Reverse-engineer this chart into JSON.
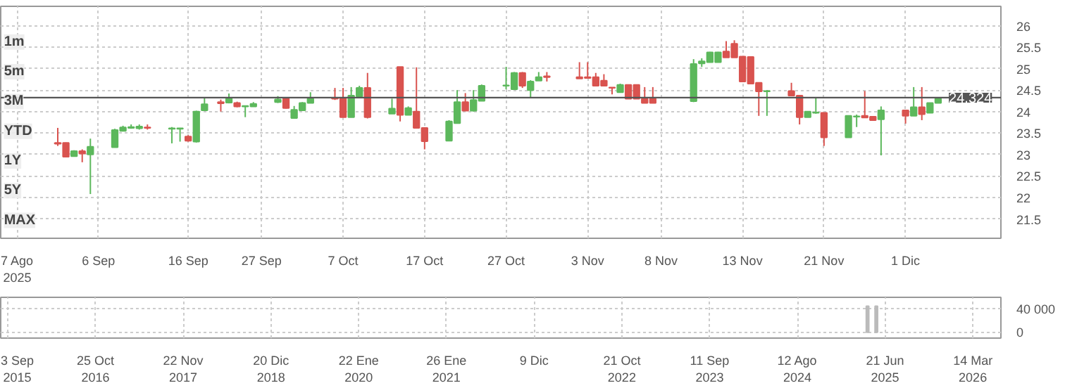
{
  "chart_data": [
    {
      "type": "candlestick",
      "categories": [
        "7 Ago\n2025",
        null,
        null,
        null,
        null,
        null,
        null,
        null,
        null,
        null,
        "6 Sep",
        null,
        null,
        null,
        null,
        null,
        null,
        null,
        null,
        null,
        null,
        "16 Sep",
        null,
        null,
        null,
        null,
        null,
        null,
        null,
        null,
        "27 Sep",
        null,
        null,
        null,
        null,
        null,
        null,
        null,
        null,
        null,
        "7 Oct",
        null,
        null,
        null,
        null,
        null,
        null,
        null,
        null,
        null,
        "17 Oct",
        null,
        null,
        null,
        null,
        null,
        null,
        null,
        null,
        null,
        "27 Oct",
        null,
        null,
        null,
        null,
        null,
        null,
        null,
        null,
        null,
        "3 Nov",
        null,
        null,
        null,
        null,
        null,
        null,
        null,
        null,
        "8 Nov",
        null,
        null,
        null,
        null,
        null,
        null,
        null,
        null,
        null,
        "13 Nov",
        null,
        null,
        null,
        null,
        null,
        null,
        null,
        null,
        null,
        "21 Nov",
        null,
        null,
        null,
        null,
        null,
        null,
        null,
        null,
        null,
        "1 Dic",
        null,
        null,
        null,
        null,
        null,
        null,
        null,
        null
      ],
      "ohlc": [
        null,
        null,
        null,
        null,
        null,
        [
          23.27,
          23.62,
          23.2,
          23.25
        ],
        [
          23.27,
          23.28,
          22.95,
          22.95
        ],
        [
          22.96,
          23.1,
          22.95,
          23.08
        ],
        [
          23.08,
          23.12,
          22.82,
          23.02
        ],
        [
          23.0,
          23.37,
          22.08,
          23.18
        ],
        null,
        null,
        [
          23.17,
          23.6,
          23.17,
          23.57
        ],
        [
          23.55,
          23.67,
          23.55,
          23.63
        ],
        [
          23.62,
          23.7,
          23.6,
          23.64
        ],
        [
          23.61,
          23.7,
          23.58,
          23.65
        ],
        [
          23.63,
          23.7,
          23.58,
          23.62
        ],
        null,
        null,
        [
          23.6,
          23.64,
          23.26,
          23.61
        ],
        [
          23.6,
          23.62,
          23.3,
          23.61
        ],
        [
          23.42,
          23.45,
          23.3,
          23.32
        ],
        [
          23.3,
          24.02,
          23.28,
          24.0
        ],
        [
          24.03,
          24.32,
          24.03,
          24.17
        ],
        null,
        [
          24.22,
          24.28,
          24.0,
          24.19
        ],
        [
          24.21,
          24.42,
          24.19,
          24.3
        ],
        [
          24.2,
          24.23,
          24.1,
          24.12
        ],
        [
          24.12,
          24.14,
          23.87,
          24.13
        ],
        [
          24.12,
          24.22,
          24.12,
          24.18
        ],
        null,
        null,
        [
          24.22,
          24.36,
          24.2,
          24.28
        ],
        [
          24.3,
          24.32,
          24.07,
          24.08
        ],
        [
          23.85,
          24.13,
          23.84,
          24.04
        ],
        [
          24.03,
          24.22,
          24.02,
          24.2
        ],
        [
          24.2,
          24.45,
          24.2,
          24.3
        ],
        null,
        null,
        [
          24.32,
          24.55,
          24.27,
          24.3
        ],
        [
          24.32,
          24.55,
          23.87,
          23.87
        ],
        [
          23.87,
          24.57,
          23.87,
          24.37
        ],
        [
          24.35,
          24.6,
          24.33,
          24.55
        ],
        [
          24.55,
          24.9,
          23.84,
          23.87
        ],
        null,
        null,
        [
          23.95,
          24.3,
          23.95,
          24.07
        ],
        [
          25.04,
          25.04,
          23.77,
          23.92
        ],
        [
          23.92,
          24.12,
          23.92,
          24.08
        ],
        [
          24.0,
          25.03,
          23.62,
          23.62
        ],
        [
          23.62,
          23.62,
          23.12,
          23.31
        ],
        null,
        null,
        [
          23.32,
          23.8,
          23.32,
          23.77
        ],
        [
          23.73,
          24.5,
          23.73,
          24.22
        ],
        [
          24.22,
          24.43,
          24.02,
          24.02
        ],
        [
          24.02,
          24.5,
          24.0,
          24.27
        ],
        [
          24.25,
          24.63,
          24.25,
          24.6
        ],
        null,
        null,
        [
          24.6,
          25.04,
          24.52,
          24.61
        ],
        [
          24.52,
          24.92,
          24.52,
          24.9
        ],
        [
          24.9,
          24.92,
          24.55,
          24.6
        ],
        [
          24.5,
          24.73,
          24.33,
          24.7
        ],
        [
          24.72,
          24.92,
          24.72,
          24.8
        ],
        [
          24.82,
          24.92,
          24.7,
          24.8
        ],
        null,
        null,
        null,
        [
          24.8,
          25.15,
          24.77,
          24.77
        ],
        [
          24.8,
          25.15,
          24.77,
          24.78
        ],
        [
          24.8,
          24.9,
          24.6,
          24.6
        ],
        [
          24.72,
          24.87,
          24.6,
          24.6
        ],
        [
          24.56,
          24.56,
          24.4,
          24.55
        ],
        [
          24.45,
          24.65,
          24.45,
          24.62
        ],
        [
          24.62,
          24.62,
          24.3,
          24.3
        ],
        [
          24.62,
          24.62,
          24.3,
          24.3
        ],
        [
          24.3,
          24.57,
          24.2,
          24.2
        ],
        [
          24.3,
          24.57,
          24.2,
          24.2
        ],
        null,
        null,
        null,
        null,
        [
          24.24,
          25.22,
          24.22,
          25.11
        ],
        [
          25.12,
          25.24,
          25.04,
          25.17
        ],
        [
          25.15,
          25.39,
          25.15,
          25.38
        ],
        [
          25.15,
          25.39,
          25.15,
          25.38
        ],
        [
          25.4,
          25.64,
          25.26,
          25.26
        ],
        [
          25.58,
          25.66,
          25.26,
          25.26
        ],
        [
          25.28,
          25.28,
          24.7,
          24.7
        ],
        [
          25.27,
          25.27,
          24.65,
          24.65
        ],
        [
          24.67,
          24.67,
          23.9,
          24.47
        ],
        [
          24.47,
          24.5,
          23.9,
          24.48
        ],
        null,
        null,
        [
          24.48,
          24.67,
          24.37,
          24.37
        ],
        [
          24.37,
          24.37,
          23.7,
          23.87
        ],
        [
          23.87,
          24.0,
          23.87,
          24.0
        ],
        [
          23.97,
          24.33,
          23.95,
          23.98
        ],
        [
          23.97,
          23.97,
          23.2,
          23.4
        ],
        null,
        null,
        [
          23.4,
          23.9,
          23.4,
          23.9
        ],
        [
          23.88,
          23.93,
          23.64,
          23.89
        ],
        [
          23.9,
          24.48,
          23.85,
          23.86
        ],
        [
          23.88,
          23.88,
          23.8,
          23.8
        ],
        [
          23.82,
          24.12,
          22.98,
          24.03
        ],
        null,
        null,
        [
          24.03,
          24.03,
          23.72,
          23.9
        ],
        [
          23.9,
          24.57,
          23.9,
          24.1
        ],
        [
          24.1,
          24.57,
          23.8,
          23.94
        ],
        [
          23.97,
          24.2,
          23.97,
          24.2
        ],
        [
          24.2,
          24.3,
          24.2,
          24.3
        ],
        null,
        null,
        null,
        null
      ],
      "colors": [
        null,
        null,
        null,
        null,
        null,
        "#d9534f",
        "#d9534f",
        "#5cb85c",
        "#d9534f",
        "#5cb85c",
        null,
        null,
        "#5cb85c",
        "#5cb85c",
        "#5cb85c",
        "#5cb85c",
        "#d9534f",
        null,
        null,
        "#5cb85c",
        "#5cb85c",
        "#d9534f",
        "#5cb85c",
        "#5cb85c",
        null,
        "#d9534f",
        "#5cb85c",
        "#d9534f",
        "#5cb85c",
        "#5cb85c",
        null,
        null,
        "#5cb85c",
        "#d9534f",
        "#5cb85c",
        "#5cb85c",
        "#5cb85c",
        null,
        null,
        "#d9534f",
        "#d9534f",
        "#5cb85c",
        "#5cb85c",
        "#d9534f",
        null,
        null,
        "#5cb85c",
        "#d9534f",
        "#5cb85c",
        "#d9534f",
        "#d9534f",
        null,
        null,
        "#5cb85c",
        "#5cb85c",
        "#d9534f",
        "#5cb85c",
        "#5cb85c",
        null,
        null,
        "#5cb85c",
        "#5cb85c",
        "#d9534f",
        "#5cb85c",
        "#5cb85c",
        "#d9534f",
        null,
        null,
        null,
        "#d9534f",
        "#d9534f",
        "#d9534f",
        "#d9534f",
        "#d9534f",
        "#5cb85c",
        "#d9534f",
        "#d9534f",
        "#d9534f",
        "#d9534f",
        null,
        null,
        null,
        null,
        "#5cb85c",
        "#5cb85c",
        "#5cb85c",
        "#5cb85c",
        "#d9534f",
        "#d9534f",
        "#d9534f",
        "#d9534f",
        "#d9534f",
        "#5cb85c",
        null,
        null,
        "#d9534f",
        "#d9534f",
        "#5cb85c",
        "#5cb85c",
        "#d9534f",
        null,
        null,
        "#5cb85c",
        "#5cb85c",
        "#d9534f",
        "#d9534f",
        "#5cb85c",
        null,
        null,
        "#d9534f",
        "#5cb85c",
        "#d9534f",
        "#5cb85c",
        "#5cb85c",
        null,
        null,
        null,
        null
      ],
      "ylim": [
        21.05,
        26.45
      ],
      "yticks": [
        21.5,
        22,
        22.5,
        23,
        23.5,
        24,
        24.5,
        25,
        25.5,
        26
      ],
      "ref_lines": [
        {
          "axis": "y",
          "value": 24.324,
          "label": "24.324",
          "color": "#555555"
        }
      ],
      "annotations": [
        "1m",
        "5m",
        "3M",
        "YTD",
        "1Y",
        "5Y",
        "MAX"
      ],
      "grid": true
    },
    {
      "type": "bar",
      "categories": [
        "3 Sep\n2015",
        null,
        null,
        null,
        null,
        null,
        null,
        null,
        null,
        null,
        "25 Oct\n2016",
        null,
        null,
        null,
        null,
        null,
        null,
        null,
        null,
        null,
        "22 Nov\n2017",
        null,
        null,
        null,
        null,
        null,
        null,
        null,
        null,
        null,
        "20 Dic\n2018",
        null,
        null,
        null,
        null,
        null,
        null,
        null,
        null,
        null,
        "22 Ene\n2020",
        null,
        null,
        null,
        null,
        null,
        null,
        null,
        null,
        null,
        "26 Ene\n2021",
        null,
        null,
        null,
        null,
        null,
        null,
        null,
        null,
        null,
        "9 Dic",
        null,
        null,
        null,
        null,
        null,
        null,
        null,
        null,
        null,
        "21 Oct\n2022",
        null,
        null,
        null,
        null,
        null,
        null,
        null,
        null,
        null,
        "11 Sep\n2023",
        null,
        null,
        null,
        null,
        null,
        null,
        null,
        null,
        null,
        "12 Ago\n2024",
        null,
        null,
        null,
        null,
        null,
        null,
        null,
        null,
        null,
        "21 Jun\n2025",
        null,
        null,
        null,
        null,
        null,
        null,
        null,
        null,
        null,
        "14 Mar\n2026"
      ],
      "values": [
        null,
        null,
        null,
        null,
        null,
        null,
        null,
        null,
        null,
        null,
        null,
        null,
        null,
        null,
        null,
        null,
        null,
        null,
        null,
        null,
        null,
        null,
        null,
        null,
        null,
        null,
        null,
        null,
        null,
        null,
        null,
        null,
        null,
        null,
        null,
        null,
        null,
        null,
        null,
        null,
        null,
        null,
        null,
        null,
        null,
        null,
        null,
        null,
        null,
        null,
        null,
        null,
        null,
        null,
        null,
        null,
        null,
        null,
        null,
        null,
        null,
        null,
        null,
        null,
        null,
        null,
        null,
        null,
        null,
        null,
        null,
        null,
        null,
        null,
        null,
        null,
        null,
        null,
        null,
        null,
        null,
        null,
        null,
        null,
        null,
        null,
        null,
        null,
        null,
        null,
        null,
        null,
        null,
        null,
        null,
        null,
        null,
        null,
        45000,
        45000,
        null,
        null,
        null,
        null,
        null,
        null,
        null,
        null,
        null,
        null,
        null
      ],
      "color": "#bbbbbb",
      "ylim": [
        -10000,
        60000
      ],
      "yticks": [
        {
          "value": 0,
          "label": "0"
        },
        {
          "value": 40000,
          "label": "40 000"
        }
      ],
      "grid": true
    }
  ]
}
